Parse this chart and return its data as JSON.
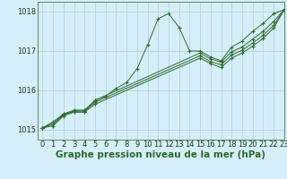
{
  "title": "Graphe pression niveau de la mer (hPa)",
  "bg_color": "#d6eef8",
  "grid_color": "#b0ccd8",
  "line_color": "#2d6a2d",
  "marker_color": "#2d6a2d",
  "xlim": [
    -0.5,
    23
  ],
  "ylim": [
    1014.75,
    1018.25
  ],
  "yticks": [
    1015,
    1016,
    1017,
    1018
  ],
  "xticks": [
    0,
    1,
    2,
    3,
    4,
    5,
    6,
    7,
    8,
    9,
    10,
    11,
    12,
    13,
    14,
    15,
    16,
    17,
    18,
    19,
    20,
    21,
    22,
    23
  ],
  "series": [
    {
      "x": [
        0,
        1,
        2,
        3,
        4,
        5,
        6,
        7,
        8,
        9,
        10,
        11,
        12,
        13,
        14,
        15,
        16,
        17,
        18,
        19,
        20,
        21,
        22,
        23
      ],
      "y": [
        1015.05,
        1015.2,
        1015.4,
        1015.45,
        1015.45,
        1015.75,
        1015.85,
        1016.05,
        1016.2,
        1016.55,
        1017.15,
        1017.82,
        1017.95,
        1017.6,
        1017.0,
        1017.0,
        1016.85,
        1016.75,
        1017.1,
        1017.25,
        1017.5,
        1017.7,
        1017.95,
        1018.05
      ]
    },
    {
      "x": [
        0,
        1,
        2,
        3,
        4,
        5,
        15,
        16,
        17,
        18,
        19,
        20,
        21,
        22,
        23
      ],
      "y": [
        1015.05,
        1015.15,
        1015.4,
        1015.5,
        1015.5,
        1015.75,
        1016.95,
        1016.8,
        1016.72,
        1016.98,
        1017.1,
        1017.3,
        1017.5,
        1017.75,
        1018.05
      ]
    },
    {
      "x": [
        0,
        1,
        2,
        3,
        4,
        5,
        15,
        16,
        17,
        18,
        19,
        20,
        21,
        22,
        23
      ],
      "y": [
        1015.05,
        1015.15,
        1015.38,
        1015.48,
        1015.48,
        1015.7,
        1016.88,
        1016.73,
        1016.65,
        1016.9,
        1017.02,
        1017.2,
        1017.4,
        1017.65,
        1018.05
      ]
    },
    {
      "x": [
        0,
        1,
        2,
        3,
        4,
        5,
        15,
        16,
        17,
        18,
        19,
        20,
        21,
        22,
        23
      ],
      "y": [
        1015.05,
        1015.1,
        1015.35,
        1015.45,
        1015.45,
        1015.65,
        1016.82,
        1016.68,
        1016.58,
        1016.82,
        1016.95,
        1017.12,
        1017.32,
        1017.58,
        1018.05
      ]
    }
  ],
  "title_fontsize": 7.5,
  "tick_fontsize": 6
}
